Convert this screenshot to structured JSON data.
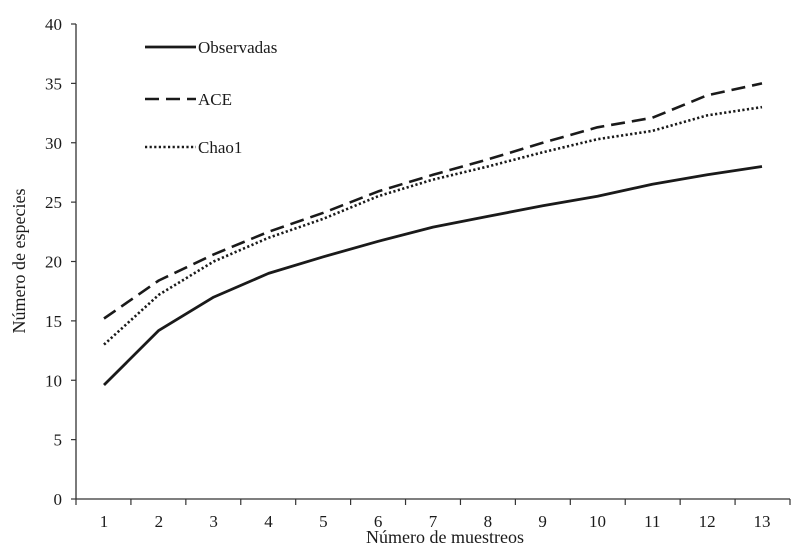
{
  "chart_data": {
    "type": "line",
    "title": "",
    "xlabel": "Número de muestreos",
    "ylabel": "Número de especies",
    "x": [
      1,
      2,
      3,
      4,
      5,
      6,
      7,
      8,
      9,
      10,
      11,
      12,
      13
    ],
    "x_ticks": [
      "1",
      "2",
      "3",
      "4",
      "5",
      "6",
      "7",
      "8",
      "9",
      "10",
      "11",
      "12",
      "13"
    ],
    "y_ticks": [
      "0",
      "5",
      "10",
      "15",
      "20",
      "25",
      "30",
      "35",
      "40"
    ],
    "ylim": [
      0,
      40
    ],
    "grid": false,
    "legend_position": "top-left",
    "series": [
      {
        "name": "Observadas",
        "style": "solid",
        "color": "#1a1a1a",
        "values": [
          9.6,
          14.2,
          17.0,
          19.0,
          20.4,
          21.7,
          22.9,
          23.8,
          24.7,
          25.5,
          26.5,
          27.3,
          28.0
        ]
      },
      {
        "name": "ACE",
        "style": "dashed",
        "color": "#1a1a1a",
        "values": [
          15.2,
          18.4,
          20.6,
          22.5,
          24.1,
          25.9,
          27.3,
          28.6,
          30.0,
          31.3,
          32.1,
          34.0,
          35.0
        ]
      },
      {
        "name": "Chao1",
        "style": "dotted",
        "color": "#1a1a1a",
        "values": [
          13.0,
          17.2,
          20.0,
          22.0,
          23.6,
          25.5,
          26.9,
          28.0,
          29.2,
          30.3,
          31.0,
          32.3,
          33.0
        ]
      }
    ]
  }
}
